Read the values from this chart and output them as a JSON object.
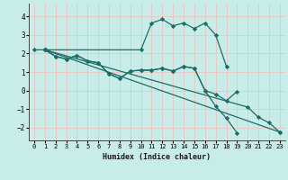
{
  "title": "",
  "xlabel": "Humidex (Indice chaleur)",
  "ylabel": "",
  "xlim": [
    -0.5,
    23.5
  ],
  "ylim": [
    -2.7,
    4.7
  ],
  "xticks": [
    0,
    1,
    2,
    3,
    4,
    5,
    6,
    7,
    8,
    9,
    10,
    11,
    12,
    13,
    14,
    15,
    16,
    17,
    18,
    19,
    20,
    21,
    22,
    23
  ],
  "yticks": [
    -2,
    -1,
    0,
    1,
    2,
    3,
    4
  ],
  "bg_color": "#c8ece8",
  "line_color": "#1a6e65",
  "grid_color": "#e8c8c8",
  "lines": [
    {
      "x": [
        0,
        1,
        10,
        11,
        12,
        13,
        14,
        15,
        16,
        17,
        18
      ],
      "y": [
        2.2,
        2.2,
        2.2,
        3.65,
        3.85,
        3.5,
        3.65,
        3.35,
        3.65,
        3.0,
        1.3
      ]
    },
    {
      "x": [
        1,
        2,
        3,
        4,
        5,
        6,
        7,
        8,
        9,
        10,
        11,
        12,
        13,
        14,
        15,
        16,
        17,
        18,
        19
      ],
      "y": [
        2.2,
        1.85,
        1.7,
        1.9,
        1.6,
        1.5,
        0.9,
        0.65,
        1.05,
        1.1,
        1.1,
        1.2,
        1.05,
        1.3,
        1.2,
        0.0,
        -0.2,
        -0.55,
        -0.05
      ]
    },
    {
      "x": [
        1,
        2,
        3,
        4,
        5,
        6,
        7,
        8,
        9,
        10,
        11,
        12,
        13,
        14,
        15,
        16,
        17,
        18,
        19,
        20,
        21,
        22,
        23
      ],
      "y": [
        2.2,
        1.85,
        1.7,
        1.9,
        1.6,
        1.5,
        0.9,
        0.65,
        1.05,
        1.1,
        1.1,
        1.2,
        1.05,
        1.3,
        1.2,
        0.0,
        -0.85,
        -1.5,
        -2.3,
        null,
        null,
        null,
        null
      ]
    },
    {
      "x": [
        1,
        23
      ],
      "y": [
        2.2,
        -2.25
      ]
    },
    {
      "x": [
        1,
        20,
        21,
        22,
        23
      ],
      "y": [
        2.2,
        -0.9,
        -1.45,
        -1.75,
        -2.25
      ]
    }
  ]
}
